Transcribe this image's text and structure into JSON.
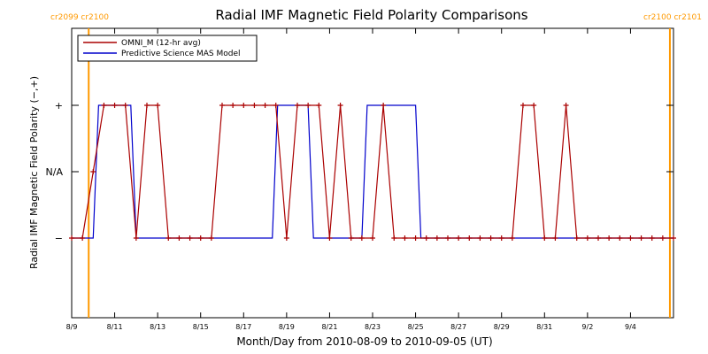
{
  "chart_data": {
    "type": "line",
    "title": "Radial IMF Magnetic Field Polarity Comparisons",
    "xlabel": "Month/Day from 2010-08-09 to 2010-09-05 (UT)",
    "ylabel": "Radial IMF Magnetic Field Polarity (−,+)",
    "x_range": [
      "2010-08-09",
      "2010-09-05"
    ],
    "x_ticks": [
      {
        "date": "2010-08-09",
        "label": "8/9"
      },
      {
        "date": "2010-08-11",
        "label": "8/11"
      },
      {
        "date": "2010-08-13",
        "label": "8/13"
      },
      {
        "date": "2010-08-15",
        "label": "8/15"
      },
      {
        "date": "2010-08-17",
        "label": "8/17"
      },
      {
        "date": "2010-08-19",
        "label": "8/19"
      },
      {
        "date": "2010-08-21",
        "label": "8/21"
      },
      {
        "date": "2010-08-23",
        "label": "8/23"
      },
      {
        "date": "2010-08-25",
        "label": "8/25"
      },
      {
        "date": "2010-08-27",
        "label": "8/27"
      },
      {
        "date": "2010-08-29",
        "label": "8/29"
      },
      {
        "date": "2010-08-31",
        "label": "8/31"
      },
      {
        "date": "2010-09-02",
        "label": "9/2"
      },
      {
        "date": "2010-09-04",
        "label": "9/4"
      }
    ],
    "y_categories": [
      "−",
      "N/A",
      "+"
    ],
    "y_tick_labels": [
      "−",
      "N/A",
      "+"
    ],
    "ylim": [
      -2,
      2
    ],
    "legend_position": "top-left",
    "carrington_markers": [
      {
        "date": "2010-08-09T19:00",
        "label": "cr2099 cr2100",
        "color": "#ff9900"
      },
      {
        "date": "2010-09-05T20:00",
        "label": "cr2100 cr2101",
        "color": "#ff9900"
      }
    ],
    "series": [
      {
        "name": "OMNI_M (12-hr avg)",
        "color": "#aa0000",
        "marker": "+",
        "points": [
          [
            "2010-08-09T00:00",
            "-"
          ],
          [
            "2010-08-09T12:00",
            "-"
          ],
          [
            "2010-08-10T00:00",
            "N/A"
          ],
          [
            "2010-08-10T12:00",
            "+"
          ],
          [
            "2010-08-11T00:00",
            "+"
          ],
          [
            "2010-08-11T12:00",
            "+"
          ],
          [
            "2010-08-12T00:00",
            "-"
          ],
          [
            "2010-08-12T12:00",
            "+"
          ],
          [
            "2010-08-13T00:00",
            "+"
          ],
          [
            "2010-08-13T12:00",
            "-"
          ],
          [
            "2010-08-14T00:00",
            "-"
          ],
          [
            "2010-08-14T12:00",
            "-"
          ],
          [
            "2010-08-15T00:00",
            "-"
          ],
          [
            "2010-08-15T12:00",
            "-"
          ],
          [
            "2010-08-16T00:00",
            "+"
          ],
          [
            "2010-08-16T12:00",
            "+"
          ],
          [
            "2010-08-17T00:00",
            "+"
          ],
          [
            "2010-08-17T12:00",
            "+"
          ],
          [
            "2010-08-18T00:00",
            "+"
          ],
          [
            "2010-08-18T12:00",
            "+"
          ],
          [
            "2010-08-19T00:00",
            "-"
          ],
          [
            "2010-08-19T12:00",
            "+"
          ],
          [
            "2010-08-20T00:00",
            "+"
          ],
          [
            "2010-08-20T12:00",
            "+"
          ],
          [
            "2010-08-21T00:00",
            "-"
          ],
          [
            "2010-08-21T12:00",
            "+"
          ],
          [
            "2010-08-22T00:00",
            "-"
          ],
          [
            "2010-08-22T12:00",
            "-"
          ],
          [
            "2010-08-23T00:00",
            "-"
          ],
          [
            "2010-08-23T12:00",
            "+"
          ],
          [
            "2010-08-24T00:00",
            "-"
          ],
          [
            "2010-08-24T12:00",
            "-"
          ],
          [
            "2010-08-25T00:00",
            "-"
          ],
          [
            "2010-08-25T12:00",
            "-"
          ],
          [
            "2010-08-26T00:00",
            "-"
          ],
          [
            "2010-08-26T12:00",
            "-"
          ],
          [
            "2010-08-27T00:00",
            "-"
          ],
          [
            "2010-08-27T12:00",
            "-"
          ],
          [
            "2010-08-28T00:00",
            "-"
          ],
          [
            "2010-08-28T12:00",
            "-"
          ],
          [
            "2010-08-29T00:00",
            "-"
          ],
          [
            "2010-08-29T12:00",
            "-"
          ],
          [
            "2010-08-30T00:00",
            "+"
          ],
          [
            "2010-08-30T12:00",
            "+"
          ],
          [
            "2010-08-31T00:00",
            "-"
          ],
          [
            "2010-08-31T12:00",
            "-"
          ],
          [
            "2010-09-01T00:00",
            "+"
          ],
          [
            "2010-09-01T12:00",
            "-"
          ],
          [
            "2010-09-02T00:00",
            "-"
          ],
          [
            "2010-09-02T12:00",
            "-"
          ],
          [
            "2010-09-03T00:00",
            "-"
          ],
          [
            "2010-09-03T12:00",
            "-"
          ],
          [
            "2010-09-04T00:00",
            "-"
          ],
          [
            "2010-09-04T12:00",
            "-"
          ],
          [
            "2010-09-05T00:00",
            "-"
          ],
          [
            "2010-09-05T12:00",
            "-"
          ],
          [
            "2010-09-06T00:00",
            "-"
          ]
        ]
      },
      {
        "name": "Predictive Science MAS Model",
        "color": "#0000cc",
        "segments": [
          {
            "start": "2010-08-09T00:00",
            "end": "2010-08-10T00:00",
            "value": "-"
          },
          {
            "start": "2010-08-10T06:00",
            "end": "2010-08-11T18:00",
            "value": "+"
          },
          {
            "start": "2010-08-12T00:00",
            "end": "2010-08-18T08:00",
            "value": "-"
          },
          {
            "start": "2010-08-18T14:00",
            "end": "2010-08-20T00:00",
            "value": "+"
          },
          {
            "start": "2010-08-20T06:00",
            "end": "2010-08-22T12:00",
            "value": "-"
          },
          {
            "start": "2010-08-22T18:00",
            "end": "2010-08-25T00:00",
            "value": "+"
          },
          {
            "start": "2010-08-25T06:00",
            "end": "2010-09-06T00:00",
            "value": "-"
          }
        ]
      }
    ]
  }
}
